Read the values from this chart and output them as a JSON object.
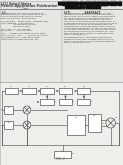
{
  "page_bg": "#f0eeea",
  "text_color": "#404040",
  "diagram_color": "#555555",
  "barcode_color": "#111111",
  "header_bg": "#e8e6e2",
  "divider_color": "#888888",
  "box_fill": "#ffffff",
  "box_edge": "#555555"
}
